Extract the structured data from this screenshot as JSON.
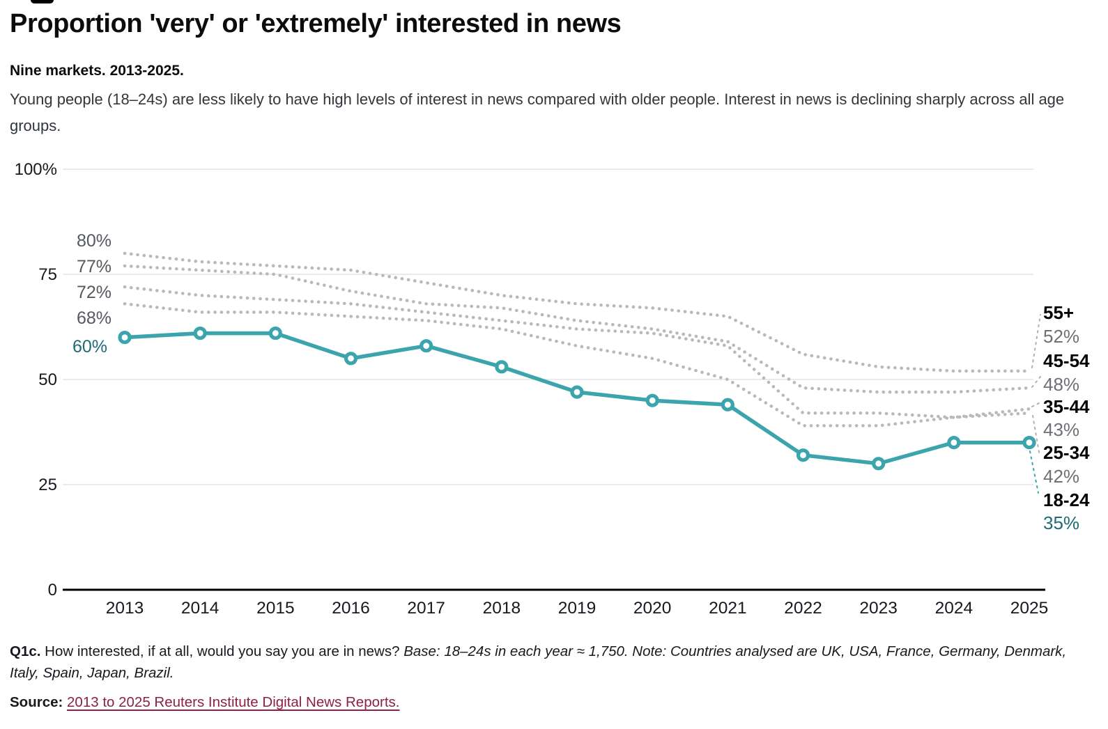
{
  "header": {
    "title": "Proportion 'very' or 'extremely' interested in news",
    "subtitle": "Nine markets. 2013-2025.",
    "description": "Young people (18–24s) are less likely to have high levels of interest in news compared with older people. Interest in news is declining sharply across all age groups."
  },
  "chart_data": {
    "type": "line",
    "title": "Proportion 'very' or 'extremely' interested in news",
    "xlabel": "",
    "ylabel": "",
    "ylim": [
      0,
      100
    ],
    "grid": "horizontal",
    "legend_position": "right-edge-labels",
    "categories": [
      "2013",
      "2014",
      "2015",
      "2016",
      "2017",
      "2018",
      "2019",
      "2020",
      "2021",
      "2022",
      "2023",
      "2024",
      "2025"
    ],
    "yticks": [
      {
        "label": "100%",
        "value": 100
      },
      {
        "label": "75",
        "value": 75
      },
      {
        "label": "50",
        "value": 50
      },
      {
        "label": "25",
        "value": 25
      },
      {
        "label": "0",
        "value": 0
      }
    ],
    "series": [
      {
        "name": "55+",
        "style": "dotted",
        "color": "#b9b9b9",
        "start_label": "80%",
        "end_label": "52%",
        "values": [
          80,
          78,
          77,
          76,
          73,
          70,
          68,
          67,
          65,
          56,
          53,
          52,
          52
        ]
      },
      {
        "name": "45-54",
        "style": "dotted",
        "color": "#b9b9b9",
        "start_label": "77%",
        "end_label": "48%",
        "values": [
          77,
          76,
          75,
          71,
          68,
          67,
          64,
          62,
          59,
          48,
          47,
          47,
          48
        ]
      },
      {
        "name": "35-44",
        "style": "dotted",
        "color": "#b9b9b9",
        "start_label": "72%",
        "end_label": "43%",
        "values": [
          72,
          70,
          69,
          68,
          66,
          64,
          62,
          61,
          58,
          42,
          42,
          41,
          43
        ]
      },
      {
        "name": "25-34",
        "style": "dotted",
        "color": "#b9b9b9",
        "start_label": "68%",
        "end_label": "42%",
        "values": [
          68,
          66,
          66,
          65,
          64,
          62,
          58,
          55,
          50,
          39,
          39,
          41,
          42
        ]
      },
      {
        "name": "18-24",
        "style": "solid",
        "color": "#3ca4ad",
        "start_label": "60%",
        "end_label": "35%",
        "values": [
          60,
          61,
          61,
          55,
          58,
          53,
          47,
          45,
          44,
          32,
          30,
          35,
          35
        ]
      }
    ]
  },
  "colors": {
    "teal": "#3ca4ad",
    "teal_dark": "#1d6b74",
    "dotted_gray": "#b9b9b9",
    "value_gray": "#6e7076",
    "left_label_gray": "#55585e",
    "gridline": "#e3e3e3",
    "axis": "#000000",
    "link": "#8e2044"
  },
  "footer": {
    "q_label": "Q1c.",
    "q_text": " How interested, if at all, would you say you are in news? ",
    "q_note": "Base: 18–24s in each year ≈ 1,750. Note: Countries analysed are UK, USA, France, Germany, Denmark, Italy, Spain, Japan, Brazil.",
    "source_label": "Source:",
    "source_link_text": "2013 to 2025 Reuters Institute Digital News Reports."
  }
}
